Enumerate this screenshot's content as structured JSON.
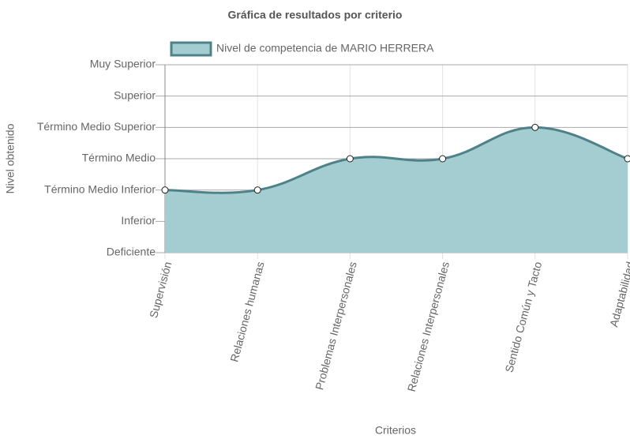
{
  "chart_data": {
    "type": "area",
    "title": "Gráfica de resultados por criterio",
    "x_label": "Criterios",
    "y_label": "Nivel obtenido",
    "categories": [
      "Supervisión",
      "Relaciones humanas",
      "Problemas Interpersonales",
      "Relaciones Interpersonales",
      "Sentido Común y Tacto",
      "Adaptabilidad"
    ],
    "series": [
      {
        "name": "Nivel de competencia de MARIO HERRERA",
        "color": "#4f8188",
        "fill": "#a3cdd0",
        "values": [
          3,
          3,
          4,
          4,
          5,
          4
        ]
      }
    ],
    "ylim": [
      1,
      7
    ],
    "yticks": [
      {
        "value": 1,
        "label": "Deficiente"
      },
      {
        "value": 2,
        "label": "Inferior"
      },
      {
        "value": 3,
        "label": "Término Medio Inferior"
      },
      {
        "value": 4,
        "label": "Término Medio"
      },
      {
        "value": 5,
        "label": "Término Medio Superior"
      },
      {
        "value": 6,
        "label": "Superior"
      },
      {
        "value": 7,
        "label": "Muy Superior"
      }
    ],
    "grid": true,
    "legend": "top"
  }
}
